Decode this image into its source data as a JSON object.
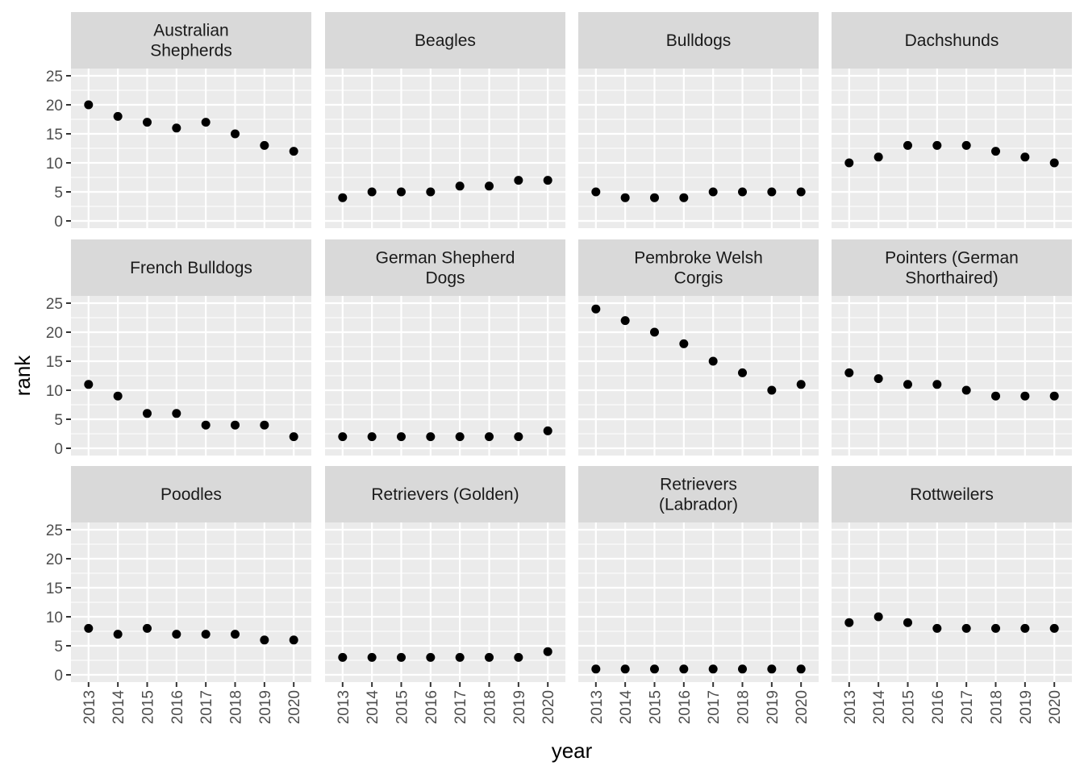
{
  "chart_data": {
    "type": "scatter",
    "xlabel": "year",
    "ylabel": "rank",
    "ylim": [
      0,
      25
    ],
    "yticks": [
      0,
      5,
      10,
      15,
      20,
      25
    ],
    "x": [
      2013,
      2014,
      2015,
      2016,
      2017,
      2018,
      2019,
      2020
    ],
    "x_tick_labels": [
      "2013",
      "2014",
      "2015",
      "2016",
      "2017",
      "2018",
      "2019",
      "2020"
    ],
    "grid": true,
    "facets": [
      {
        "title": [
          "Australian",
          "Shepherds"
        ],
        "values": [
          20,
          18,
          17,
          16,
          17,
          15,
          13,
          12
        ]
      },
      {
        "title": [
          "Beagles"
        ],
        "values": [
          4,
          5,
          5,
          5,
          6,
          6,
          7,
          7
        ]
      },
      {
        "title": [
          "Bulldogs"
        ],
        "values": [
          5,
          4,
          4,
          4,
          5,
          5,
          5,
          5
        ]
      },
      {
        "title": [
          "Dachshunds"
        ],
        "values": [
          10,
          11,
          13,
          13,
          13,
          12,
          11,
          10
        ]
      },
      {
        "title": [
          "French Bulldogs"
        ],
        "values": [
          11,
          9,
          6,
          6,
          4,
          4,
          4,
          2
        ]
      },
      {
        "title": [
          "German Shepherd",
          "Dogs"
        ],
        "values": [
          2,
          2,
          2,
          2,
          2,
          2,
          2,
          3
        ]
      },
      {
        "title": [
          "Pembroke Welsh",
          "Corgis"
        ],
        "values": [
          24,
          22,
          20,
          18,
          15,
          13,
          10,
          11
        ]
      },
      {
        "title": [
          "Pointers (German",
          "Shorthaired)"
        ],
        "values": [
          13,
          12,
          11,
          11,
          10,
          9,
          9,
          9
        ]
      },
      {
        "title": [
          "Poodles"
        ],
        "values": [
          8,
          7,
          8,
          7,
          7,
          7,
          6,
          6
        ]
      },
      {
        "title": [
          "Retrievers (Golden)"
        ],
        "values": [
          3,
          3,
          3,
          3,
          3,
          3,
          3,
          4
        ]
      },
      {
        "title": [
          "Retrievers",
          "(Labrador)"
        ],
        "values": [
          1,
          1,
          1,
          1,
          1,
          1,
          1,
          1
        ]
      },
      {
        "title": [
          "Rottweilers"
        ],
        "values": [
          9,
          10,
          9,
          8,
          8,
          8,
          8,
          8
        ]
      }
    ]
  }
}
